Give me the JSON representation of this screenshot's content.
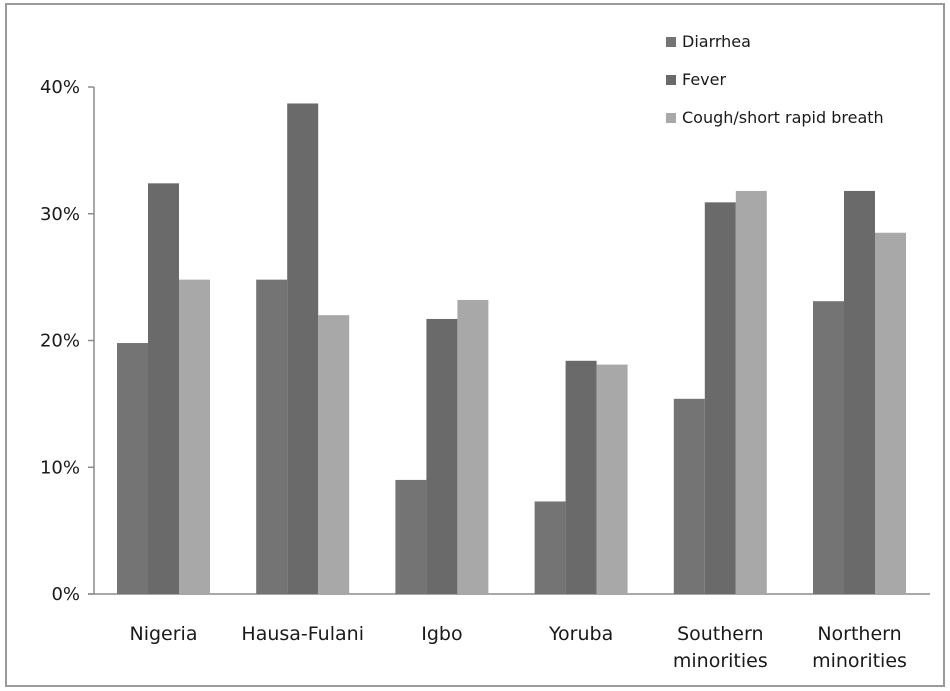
{
  "chart_data": {
    "type": "bar",
    "title": "",
    "xlabel": "",
    "ylabel": "",
    "categories": [
      [
        "Nigeria"
      ],
      [
        "Hausa-Fulani"
      ],
      [
        "Igbo"
      ],
      [
        "Yoruba"
      ],
      [
        "Southern",
        "minorities"
      ],
      [
        "Northern",
        "minorities"
      ]
    ],
    "series": [
      {
        "name": "Diarrhea",
        "color": "#747474",
        "values": [
          19.8,
          24.8,
          9.0,
          7.3,
          15.4,
          23.1
        ]
      },
      {
        "name": "Fever",
        "color": "#6a6a6a",
        "values": [
          32.4,
          38.7,
          21.7,
          18.4,
          30.9,
          31.8
        ]
      },
      {
        "name": "Cough/short rapid breath",
        "color": "#a8a8a8",
        "values": [
          24.8,
          22.0,
          23.2,
          18.1,
          31.8,
          28.5
        ]
      }
    ],
    "ylim": [
      0,
      40
    ],
    "yticks": [
      0,
      10,
      20,
      30,
      40
    ],
    "ytick_labels": [
      "0%",
      "10%",
      "20%",
      "30%",
      "40%"
    ],
    "grid": false,
    "legend_position": "top-right"
  }
}
